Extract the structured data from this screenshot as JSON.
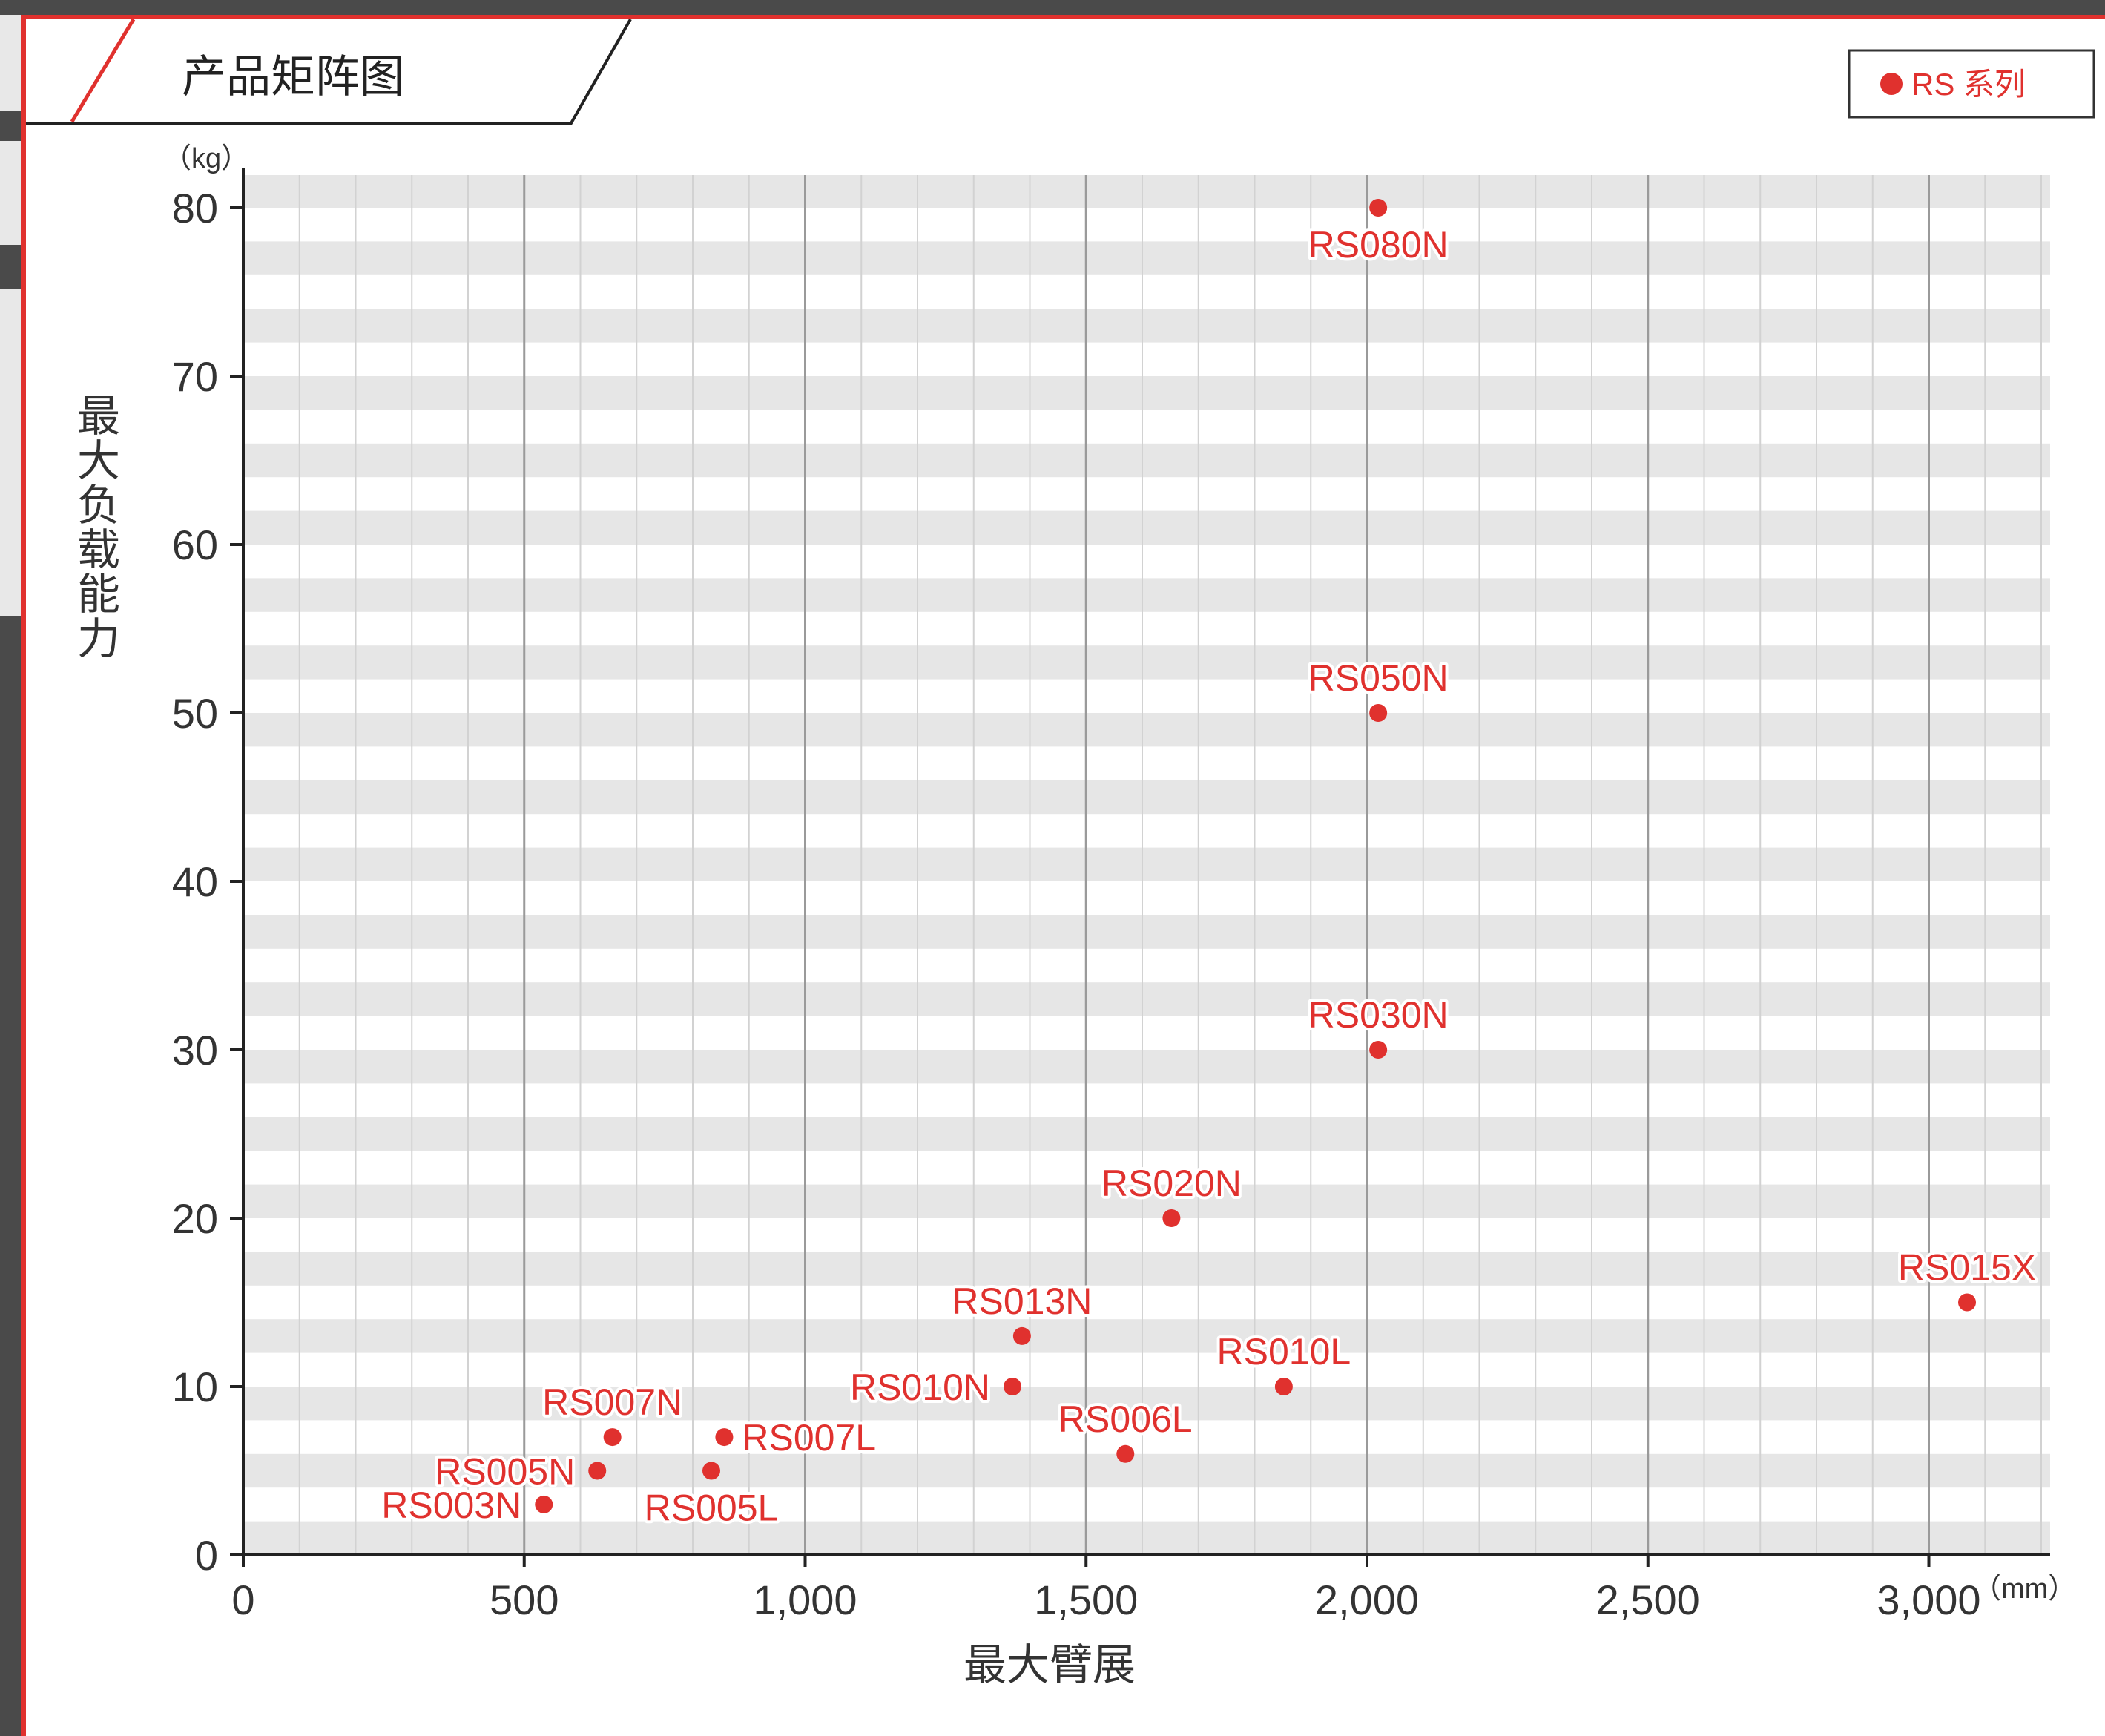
{
  "chart_data": {
    "type": "scatter",
    "title": "产品矩阵图",
    "legend": {
      "label": "RS 系列",
      "color": "#e0312e",
      "placement": "top-right"
    },
    "xlabel": "最大臂展",
    "ylabel": "最大负载能力",
    "x_unit": "（mm）",
    "y_unit": "（kg）",
    "xlim": [
      0,
      3200
    ],
    "ylim": [
      0,
      82
    ],
    "x_ticks": [
      0,
      500,
      1000,
      1500,
      2000,
      2500,
      3000
    ],
    "x_tick_labels": [
      "0",
      "500",
      "1,000",
      "1,500",
      "2,000",
      "2,500",
      "3,000"
    ],
    "y_ticks": [
      0,
      10,
      20,
      30,
      40,
      50,
      60,
      70,
      80
    ],
    "y_tick_labels": [
      "0",
      "10",
      "20",
      "30",
      "40",
      "50",
      "60",
      "70",
      "80"
    ],
    "grid": "vertical lines every 100 mm (major every 500), horizontal bands every 2 kg",
    "points": [
      {
        "name": "RS003N",
        "x": 535,
        "y": 3,
        "label_pos": "left"
      },
      {
        "name": "RS005N",
        "x": 630,
        "y": 5,
        "label_pos": "left"
      },
      {
        "name": "RS007N",
        "x": 657,
        "y": 7,
        "label_pos": "above"
      },
      {
        "name": "RS005L",
        "x": 833,
        "y": 5,
        "label_pos": "below"
      },
      {
        "name": "RS007L",
        "x": 856,
        "y": 7,
        "label_pos": "right"
      },
      {
        "name": "RS010N",
        "x": 1369,
        "y": 10,
        "label_pos": "left"
      },
      {
        "name": "RS013N",
        "x": 1386,
        "y": 13,
        "label_pos": "above"
      },
      {
        "name": "RS006L",
        "x": 1570,
        "y": 6,
        "label_pos": "above"
      },
      {
        "name": "RS020N",
        "x": 1652,
        "y": 20,
        "label_pos": "above"
      },
      {
        "name": "RS010L",
        "x": 1852,
        "y": 10,
        "label_pos": "above"
      },
      {
        "name": "RS030N",
        "x": 2020,
        "y": 30,
        "label_pos": "above"
      },
      {
        "name": "RS050N",
        "x": 2020,
        "y": 50,
        "label_pos": "above"
      },
      {
        "name": "RS080N",
        "x": 2020,
        "y": 80,
        "label_pos": "below"
      },
      {
        "name": "RS015X",
        "x": 3068,
        "y": 15,
        "label_pos": "above"
      }
    ]
  }
}
